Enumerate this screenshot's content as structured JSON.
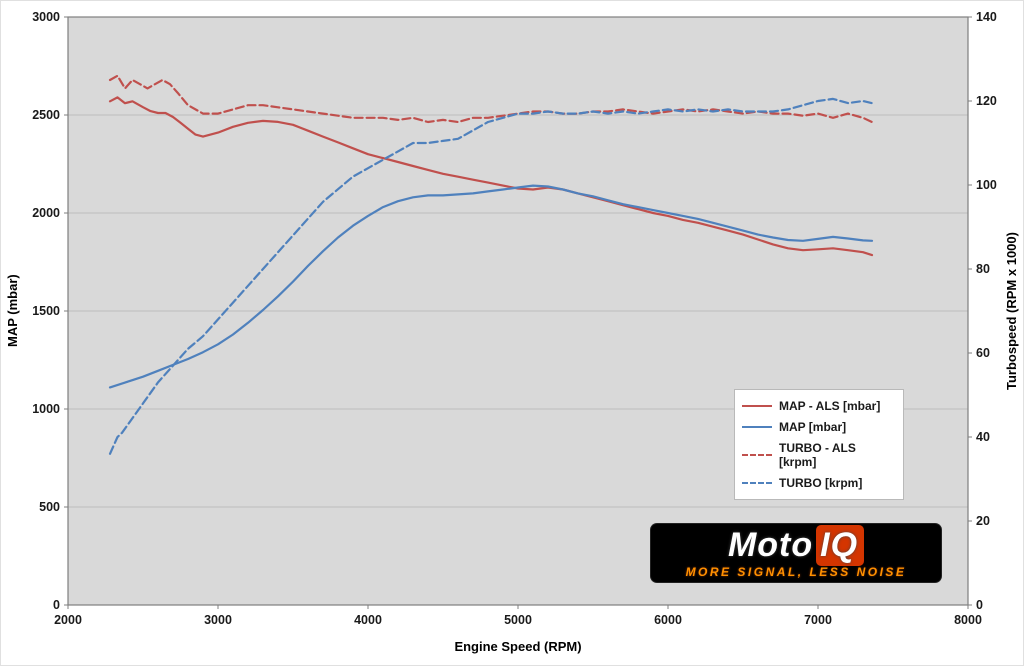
{
  "chart_data": {
    "type": "line",
    "title": "",
    "xlabel": "Engine Speed (RPM)",
    "ylabel_left": "MAP (mbar)",
    "ylabel_right": "Turbospeed (RPM x 1000)",
    "xlim": [
      2000,
      8000
    ],
    "ylim_left": [
      0,
      3000
    ],
    "ylim_right": [
      0,
      140
    ],
    "x_ticks": [
      2000,
      3000,
      4000,
      5000,
      6000,
      7000,
      8000
    ],
    "y_left_ticks": [
      0,
      500,
      1000,
      1500,
      2000,
      2500,
      3000
    ],
    "y_right_ticks": [
      0,
      20,
      40,
      60,
      80,
      100,
      120,
      140
    ],
    "grid": "horizontal",
    "legend_position": "middle-right",
    "plot_bg": "#d9d9d9",
    "gridline_color": "#bdbdbd",
    "border_color": "#7f7f7f",
    "series": [
      {
        "name": "MAP - ALS [mbar]",
        "color": "#c0504d",
        "style": "solid",
        "axis": "left",
        "points": [
          [
            2280,
            2570
          ],
          [
            2330,
            2590
          ],
          [
            2380,
            2560
          ],
          [
            2430,
            2570
          ],
          [
            2500,
            2540
          ],
          [
            2550,
            2520
          ],
          [
            2600,
            2510
          ],
          [
            2650,
            2510
          ],
          [
            2700,
            2490
          ],
          [
            2750,
            2460
          ],
          [
            2800,
            2430
          ],
          [
            2850,
            2400
          ],
          [
            2900,
            2390
          ],
          [
            2950,
            2400
          ],
          [
            3000,
            2410
          ],
          [
            3100,
            2440
          ],
          [
            3200,
            2460
          ],
          [
            3300,
            2470
          ],
          [
            3400,
            2465
          ],
          [
            3500,
            2450
          ],
          [
            3600,
            2420
          ],
          [
            3700,
            2390
          ],
          [
            3800,
            2360
          ],
          [
            3900,
            2330
          ],
          [
            4000,
            2300
          ],
          [
            4100,
            2280
          ],
          [
            4200,
            2260
          ],
          [
            4300,
            2240
          ],
          [
            4400,
            2220
          ],
          [
            4500,
            2200
          ],
          [
            4600,
            2185
          ],
          [
            4700,
            2170
          ],
          [
            4800,
            2155
          ],
          [
            4900,
            2140
          ],
          [
            5000,
            2125
          ],
          [
            5100,
            2120
          ],
          [
            5200,
            2130
          ],
          [
            5300,
            2120
          ],
          [
            5400,
            2100
          ],
          [
            5500,
            2080
          ],
          [
            5600,
            2060
          ],
          [
            5700,
            2040
          ],
          [
            5800,
            2020
          ],
          [
            5900,
            2000
          ],
          [
            6000,
            1985
          ],
          [
            6100,
            1965
          ],
          [
            6200,
            1950
          ],
          [
            6300,
            1930
          ],
          [
            6400,
            1910
          ],
          [
            6500,
            1890
          ],
          [
            6600,
            1865
          ],
          [
            6700,
            1840
          ],
          [
            6800,
            1820
          ],
          [
            6900,
            1810
          ],
          [
            7000,
            1815
          ],
          [
            7100,
            1820
          ],
          [
            7200,
            1810
          ],
          [
            7300,
            1800
          ],
          [
            7360,
            1785
          ]
        ]
      },
      {
        "name": "MAP [mbar]",
        "color": "#4f81bd",
        "style": "solid",
        "axis": "left",
        "points": [
          [
            2280,
            1110
          ],
          [
            2400,
            1140
          ],
          [
            2500,
            1165
          ],
          [
            2600,
            1195
          ],
          [
            2700,
            1225
          ],
          [
            2800,
            1255
          ],
          [
            2900,
            1290
          ],
          [
            3000,
            1330
          ],
          [
            3100,
            1380
          ],
          [
            3200,
            1440
          ],
          [
            3300,
            1505
          ],
          [
            3400,
            1575
          ],
          [
            3500,
            1650
          ],
          [
            3600,
            1730
          ],
          [
            3700,
            1805
          ],
          [
            3800,
            1875
          ],
          [
            3900,
            1935
          ],
          [
            4000,
            1985
          ],
          [
            4100,
            2030
          ],
          [
            4200,
            2060
          ],
          [
            4300,
            2080
          ],
          [
            4400,
            2090
          ],
          [
            4500,
            2090
          ],
          [
            4600,
            2095
          ],
          [
            4700,
            2100
          ],
          [
            4800,
            2110
          ],
          [
            4900,
            2120
          ],
          [
            5000,
            2130
          ],
          [
            5100,
            2140
          ],
          [
            5200,
            2135
          ],
          [
            5300,
            2120
          ],
          [
            5400,
            2100
          ],
          [
            5500,
            2085
          ],
          [
            5600,
            2065
          ],
          [
            5700,
            2045
          ],
          [
            5800,
            2030
          ],
          [
            5900,
            2015
          ],
          [
            6000,
            2000
          ],
          [
            6100,
            1985
          ],
          [
            6200,
            1970
          ],
          [
            6300,
            1950
          ],
          [
            6400,
            1930
          ],
          [
            6500,
            1910
          ],
          [
            6600,
            1890
          ],
          [
            6700,
            1875
          ],
          [
            6800,
            1862
          ],
          [
            6900,
            1858
          ],
          [
            7000,
            1868
          ],
          [
            7100,
            1878
          ],
          [
            7200,
            1870
          ],
          [
            7300,
            1860
          ],
          [
            7360,
            1858
          ]
        ]
      },
      {
        "name": "TURBO - ALS [krpm]",
        "color": "#c0504d",
        "style": "dashed",
        "axis": "right",
        "points": [
          [
            2280,
            125
          ],
          [
            2330,
            126
          ],
          [
            2380,
            123
          ],
          [
            2430,
            125
          ],
          [
            2480,
            124
          ],
          [
            2530,
            123
          ],
          [
            2580,
            124
          ],
          [
            2630,
            125
          ],
          [
            2680,
            124
          ],
          [
            2730,
            122
          ],
          [
            2800,
            119
          ],
          [
            2900,
            117
          ],
          [
            3000,
            117
          ],
          [
            3100,
            118
          ],
          [
            3200,
            119
          ],
          [
            3300,
            119
          ],
          [
            3400,
            118.5
          ],
          [
            3500,
            118
          ],
          [
            3600,
            117.5
          ],
          [
            3700,
            117
          ],
          [
            3800,
            116.5
          ],
          [
            3900,
            116
          ],
          [
            4000,
            116
          ],
          [
            4100,
            116
          ],
          [
            4200,
            115.5
          ],
          [
            4300,
            116
          ],
          [
            4400,
            115
          ],
          [
            4500,
            115.5
          ],
          [
            4600,
            115
          ],
          [
            4700,
            116
          ],
          [
            4800,
            116
          ],
          [
            4900,
            116.5
          ],
          [
            5000,
            117
          ],
          [
            5100,
            117.5
          ],
          [
            5200,
            117.5
          ],
          [
            5300,
            117
          ],
          [
            5400,
            117
          ],
          [
            5500,
            117.5
          ],
          [
            5600,
            117.5
          ],
          [
            5700,
            118
          ],
          [
            5800,
            117.5
          ],
          [
            5900,
            117
          ],
          [
            6000,
            117.5
          ],
          [
            6100,
            118
          ],
          [
            6200,
            117.5
          ],
          [
            6300,
            118
          ],
          [
            6400,
            117.5
          ],
          [
            6500,
            117
          ],
          [
            6600,
            117.5
          ],
          [
            6700,
            117
          ],
          [
            6800,
            117
          ],
          [
            6900,
            116.5
          ],
          [
            7000,
            117
          ],
          [
            7100,
            116
          ],
          [
            7200,
            117
          ],
          [
            7300,
            116
          ],
          [
            7360,
            115
          ]
        ]
      },
      {
        "name": "TURBO [krpm]",
        "color": "#4f81bd",
        "style": "dashed",
        "axis": "right",
        "points": [
          [
            2280,
            36
          ],
          [
            2330,
            40
          ],
          [
            2360,
            41
          ],
          [
            2400,
            43
          ],
          [
            2500,
            48
          ],
          [
            2600,
            53
          ],
          [
            2700,
            57
          ],
          [
            2800,
            61
          ],
          [
            2900,
            64
          ],
          [
            3000,
            68
          ],
          [
            3100,
            72
          ],
          [
            3200,
            76
          ],
          [
            3300,
            80
          ],
          [
            3400,
            84
          ],
          [
            3500,
            88
          ],
          [
            3600,
            92
          ],
          [
            3700,
            96
          ],
          [
            3800,
            99
          ],
          [
            3900,
            102
          ],
          [
            4000,
            104
          ],
          [
            4100,
            106
          ],
          [
            4200,
            108
          ],
          [
            4300,
            110
          ],
          [
            4400,
            110
          ],
          [
            4500,
            110.5
          ],
          [
            4600,
            111
          ],
          [
            4700,
            113
          ],
          [
            4800,
            115
          ],
          [
            4900,
            116
          ],
          [
            5000,
            117
          ],
          [
            5100,
            117
          ],
          [
            5200,
            117.5
          ],
          [
            5300,
            117
          ],
          [
            5400,
            117
          ],
          [
            5500,
            117.5
          ],
          [
            5600,
            117
          ],
          [
            5700,
            117.5
          ],
          [
            5800,
            117
          ],
          [
            5900,
            117.5
          ],
          [
            6000,
            118
          ],
          [
            6100,
            117.5
          ],
          [
            6200,
            118
          ],
          [
            6300,
            117.5
          ],
          [
            6400,
            118
          ],
          [
            6500,
            117.5
          ],
          [
            6600,
            117.5
          ],
          [
            6700,
            117.5
          ],
          [
            6800,
            118
          ],
          [
            6900,
            119
          ],
          [
            7000,
            120
          ],
          [
            7100,
            120.5
          ],
          [
            7200,
            119.5
          ],
          [
            7300,
            120
          ],
          [
            7360,
            119.5
          ]
        ]
      }
    ]
  },
  "logo": {
    "brand_left": "Moto",
    "brand_right": "IQ",
    "tagline": "MORE SIGNAL, LESS NOISE"
  }
}
